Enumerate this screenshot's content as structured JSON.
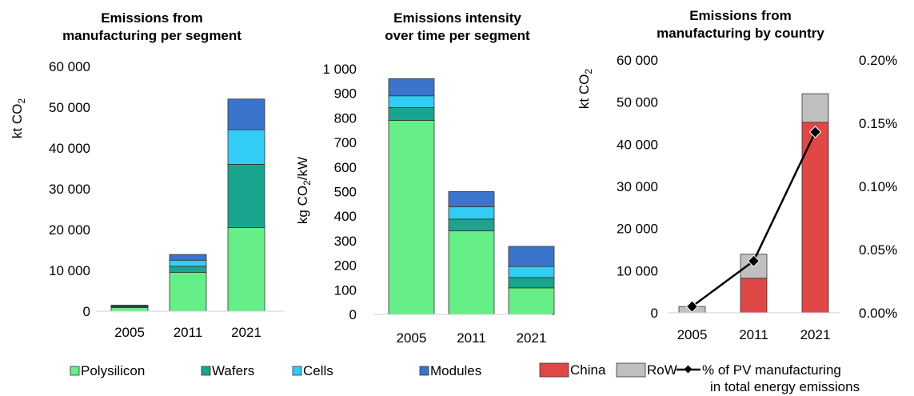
{
  "colors": {
    "polysilicon": "#66ee88",
    "wafers": "#1aa58f",
    "cells": "#33ccf5",
    "modules": "#3b74cc",
    "china": "#e04848",
    "row": "#c0c0c0",
    "line": "#000000"
  },
  "chart_data": [
    {
      "type": "bar",
      "stacked": true,
      "title": [
        "Emissions from",
        "manufacturing per segment"
      ],
      "ylabel": "kt CO2",
      "ylim": [
        0,
        60000
      ],
      "yticks": [
        0,
        10000,
        20000,
        30000,
        40000,
        50000,
        60000
      ],
      "ytick_labels": [
        "0",
        "10 000",
        "20 000",
        "30 000",
        "40 000",
        "50 000",
        "60 000"
      ],
      "categories": [
        "2005",
        "2011",
        "2021"
      ],
      "series": [
        {
          "name": "Polysilicon",
          "color_key": "polysilicon",
          "values": [
            900,
            9500,
            20500
          ]
        },
        {
          "name": "Wafers",
          "color_key": "wafers",
          "values": [
            200,
            1500,
            15500
          ]
        },
        {
          "name": "Cells",
          "color_key": "cells",
          "values": [
            150,
            1500,
            8500
          ]
        },
        {
          "name": "Modules",
          "color_key": "modules",
          "values": [
            250,
            1400,
            7500
          ]
        }
      ]
    },
    {
      "type": "bar",
      "stacked": true,
      "title": [
        "Emissions intensity",
        "over time per segment"
      ],
      "ylabel": "kg CO2/kW",
      "ylim": [
        0,
        1000
      ],
      "yticks": [
        0,
        100,
        200,
        300,
        400,
        500,
        600,
        700,
        800,
        900,
        1000
      ],
      "ytick_labels": [
        "0",
        "100",
        "200",
        "300",
        "400",
        "500",
        "600",
        "700",
        "800",
        "900",
        "1 000"
      ],
      "categories": [
        "2005",
        "2011",
        "2021"
      ],
      "series": [
        {
          "name": "Polysilicon",
          "color_key": "polysilicon",
          "values": [
            790,
            340,
            108
          ]
        },
        {
          "name": "Wafers",
          "color_key": "wafers",
          "values": [
            52,
            48,
            42
          ]
        },
        {
          "name": "Cells",
          "color_key": "cells",
          "values": [
            48,
            50,
            45
          ]
        },
        {
          "name": "Modules",
          "color_key": "modules",
          "values": [
            70,
            62,
            82
          ]
        }
      ]
    },
    {
      "type": "bar",
      "stacked": true,
      "title": [
        "Emissions from",
        "manufacturing by country"
      ],
      "ylabel": "kt CO2",
      "ylim": [
        0,
        60000
      ],
      "yticks": [
        0,
        10000,
        20000,
        30000,
        40000,
        50000,
        60000
      ],
      "ytick_labels": [
        "0",
        "10 000",
        "20 000",
        "30 000",
        "40 000",
        "50 000",
        "60 000"
      ],
      "y2lim": [
        0,
        0.2
      ],
      "y2ticks": [
        0,
        0.05,
        0.1,
        0.15,
        0.2
      ],
      "y2tick_labels": [
        "0.00%",
        "0.05%",
        "0.10%",
        "0.15%",
        "0.20%"
      ],
      "categories": [
        "2005",
        "2011",
        "2021"
      ],
      "series": [
        {
          "name": "China",
          "color_key": "china",
          "values": [
            0,
            8200,
            45200
          ]
        },
        {
          "name": "RoW",
          "color_key": "row",
          "values": [
            1500,
            5700,
            6800
          ]
        }
      ],
      "line_series": {
        "name": "% of PV manufacturing in total energy emissions",
        "axis": "right",
        "values": [
          0.005,
          0.041,
          0.143
        ]
      }
    }
  ],
  "legend_segments": [
    {
      "label": "Polysilicon",
      "color_key": "polysilicon"
    },
    {
      "label": "Wafers",
      "color_key": "wafers"
    },
    {
      "label": "Cells",
      "color_key": "cells"
    },
    {
      "label": "Modules",
      "color_key": "modules"
    }
  ],
  "legend_country": {
    "china": "China",
    "row": "RoW",
    "line_line1": "% of PV manufacturing",
    "line_line2": "in total energy emissions"
  }
}
